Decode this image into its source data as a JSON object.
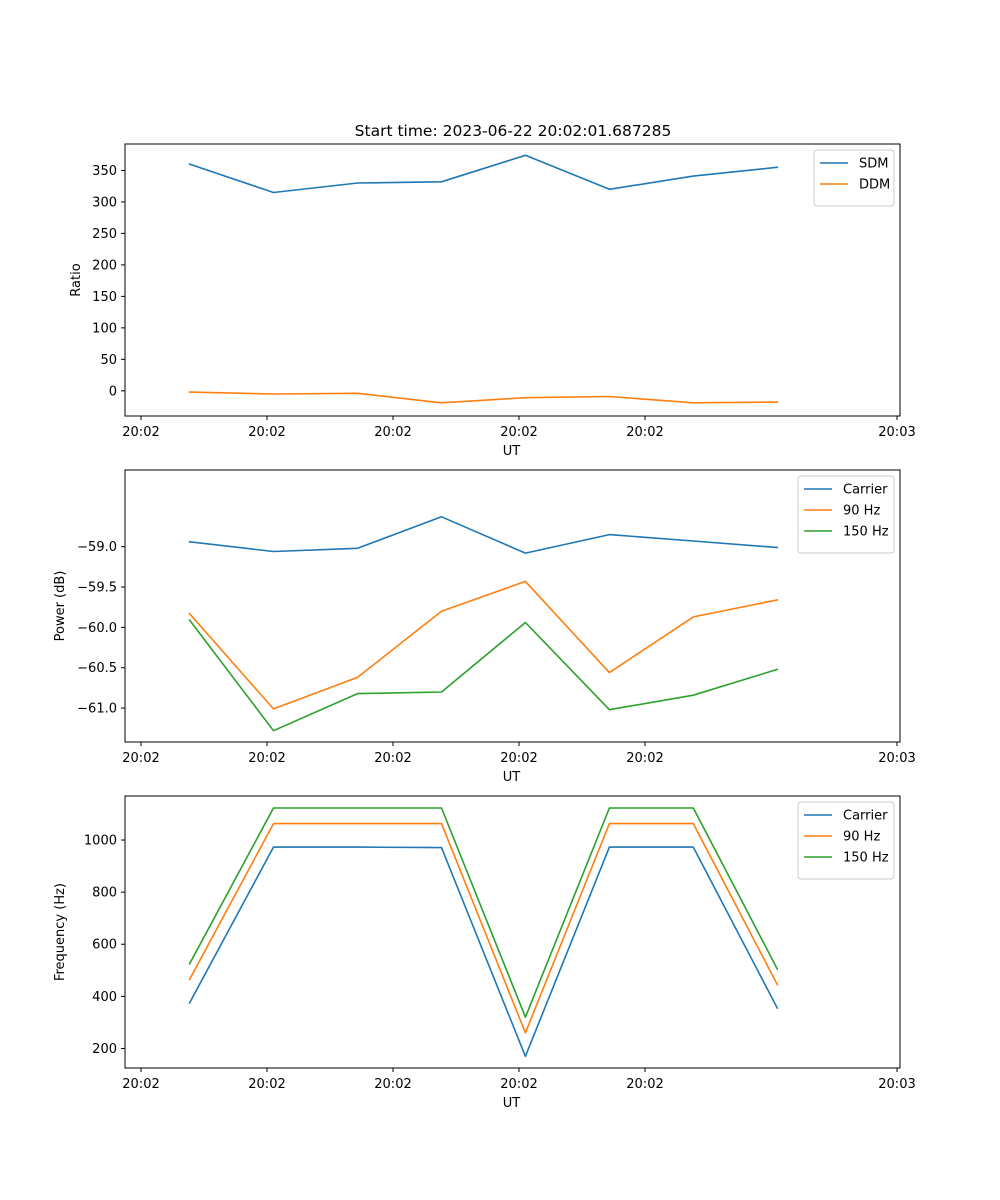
{
  "title": "Start time: 2023-06-22 20:02:01.687285",
  "colors": {
    "blue": "#1f77b4",
    "orange": "#ff7f0e",
    "green": "#2ca02c"
  },
  "chart_data": [
    {
      "type": "line",
      "xlabel": "UT",
      "ylabel": "Ratio",
      "xticks": [
        "20:02",
        "20:02",
        "20:02",
        "20:02",
        "20:02",
        "20:03"
      ],
      "xlim": [
        0,
        6
      ],
      "x": [
        0.5,
        1.15,
        1.8,
        2.45,
        3.1,
        3.75,
        4.4,
        5.05
      ],
      "ylim": [
        -40,
        392
      ],
      "yticks": [
        0,
        50,
        100,
        150,
        200,
        250,
        300,
        350
      ],
      "legend": "top-right",
      "series": [
        {
          "name": "SDM",
          "color": "#1f77b4",
          "values": [
            360,
            315,
            330,
            332,
            374,
            320,
            341,
            355
          ]
        },
        {
          "name": "DDM",
          "color": "#ff7f0e",
          "values": [
            -2,
            -5,
            -4,
            -19,
            -11,
            -9,
            -19,
            -18
          ]
        }
      ]
    },
    {
      "type": "line",
      "xlabel": "UT",
      "ylabel": "Power (dB)",
      "xticks": [
        "20:02",
        "20:02",
        "20:02",
        "20:02",
        "20:02",
        "20:03"
      ],
      "xlim": [
        0,
        6
      ],
      "x": [
        0.5,
        1.15,
        1.8,
        2.45,
        3.1,
        3.75,
        4.4,
        5.05
      ],
      "ylim": [
        -61.42,
        -58.05
      ],
      "yticks": [
        -61.0,
        -60.5,
        -60.0,
        -59.5,
        -59.0
      ],
      "legend": "top-right",
      "series": [
        {
          "name": "Carrier",
          "color": "#1f77b4",
          "values": [
            -58.94,
            -59.06,
            -59.02,
            -58.63,
            -59.08,
            -58.85,
            -58.93,
            -59.01
          ]
        },
        {
          "name": "90 Hz",
          "color": "#ff7f0e",
          "values": [
            -59.83,
            -61.01,
            -60.62,
            -59.8,
            -59.43,
            -60.56,
            -59.87,
            -59.66
          ]
        },
        {
          "name": "150 Hz",
          "color": "#2ca02c",
          "values": [
            -59.91,
            -61.28,
            -60.82,
            -60.8,
            -59.94,
            -61.02,
            -60.84,
            -60.52
          ]
        }
      ]
    },
    {
      "type": "line",
      "xlabel": "UT",
      "ylabel": "Frequency (Hz)",
      "xticks": [
        "20:02",
        "20:02",
        "20:02",
        "20:02",
        "20:02",
        "20:03"
      ],
      "xlim": [
        0,
        6
      ],
      "x": [
        0.5,
        1.15,
        1.8,
        2.45,
        3.1,
        3.75,
        4.4,
        5.05
      ],
      "ylim": [
        125,
        1169
      ],
      "yticks": [
        200,
        400,
        600,
        800,
        1000
      ],
      "legend": "top-right",
      "series": [
        {
          "name": "Carrier",
          "color": "#1f77b4",
          "values": [
            375,
            973,
            973,
            971,
            170,
            973,
            973,
            355
          ]
        },
        {
          "name": "90 Hz",
          "color": "#ff7f0e",
          "values": [
            465,
            1063,
            1063,
            1063,
            260,
            1063,
            1063,
            445
          ]
        },
        {
          "name": "150 Hz",
          "color": "#2ca02c",
          "values": [
            525,
            1123,
            1123,
            1123,
            320,
            1123,
            1123,
            505
          ]
        }
      ]
    }
  ]
}
